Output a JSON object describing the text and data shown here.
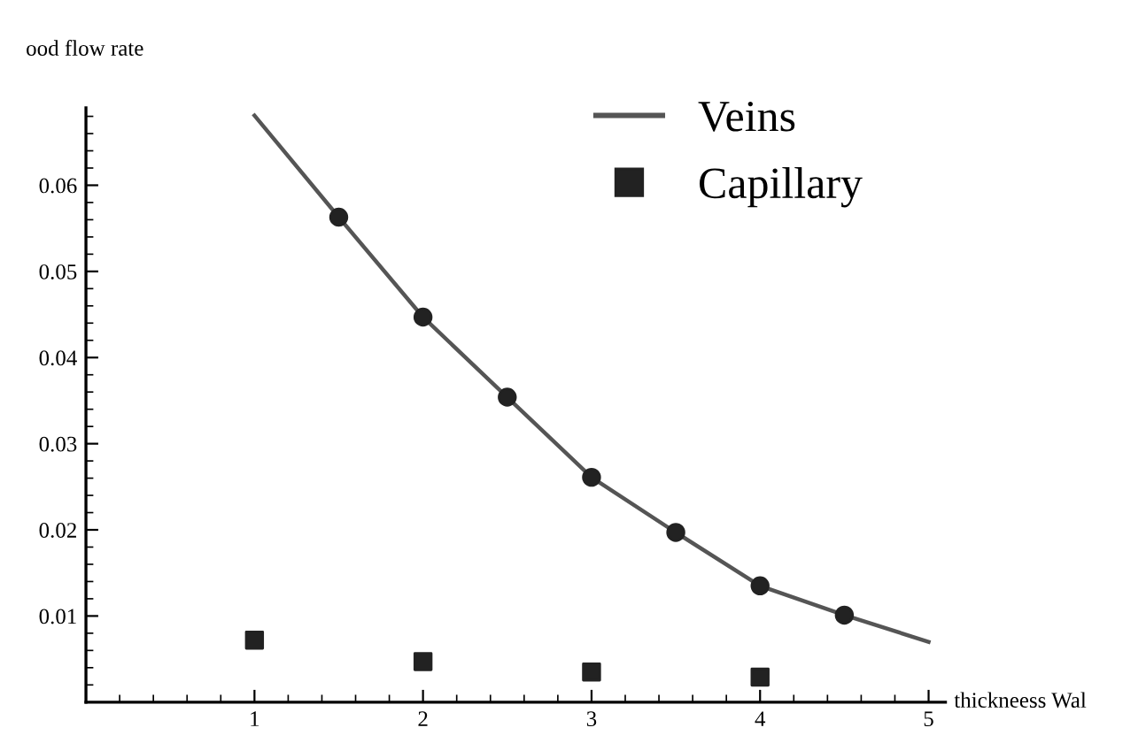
{
  "chart_data": {
    "type": "line",
    "xlabel": "thickneess Wal",
    "ylabel": "ood flow rate",
    "series": [
      {
        "name": "Veins",
        "color": "#555555",
        "marker": "none",
        "x": [
          1,
          1.5,
          2,
          2.5,
          3,
          3.5,
          4,
          4.5,
          5
        ],
        "values": [
          0.0681,
          0.0563,
          0.0447,
          0.0354,
          0.0261,
          0.0197,
          0.0135,
          0.0101,
          0.007
        ]
      },
      {
        "type": "scatter",
        "color": "#222222",
        "marker": "circle",
        "x": [
          1.5,
          2,
          2.5,
          3,
          3.5,
          4,
          4.5
        ],
        "values": [
          0.0563,
          0.0447,
          0.0354,
          0.0261,
          0.0197,
          0.0135,
          0.0101
        ]
      },
      {
        "name": "Capillary",
        "type": "scatter",
        "color": "#222222",
        "marker": "square",
        "x": [
          1,
          2,
          3,
          4
        ],
        "values": [
          0.0072,
          0.0047,
          0.0035,
          0.0029
        ]
      }
    ],
    "xlim": [
      0,
      5.1
    ],
    "ylim": [
      0,
      0.069
    ],
    "xticks": [
      1,
      2,
      3,
      4,
      5
    ],
    "yticks": [
      0.01,
      0.02,
      0.03,
      0.04,
      0.05,
      0.06
    ],
    "grid": false,
    "legend": "top right"
  }
}
